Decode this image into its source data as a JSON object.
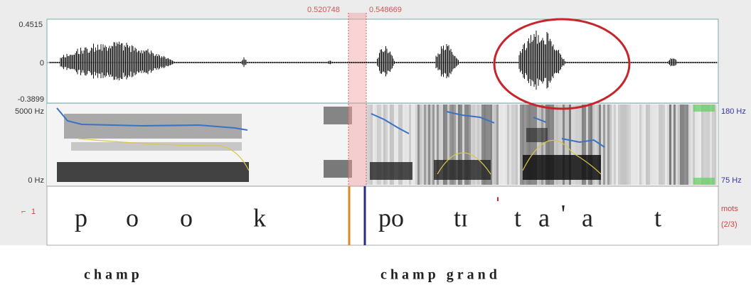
{
  "header": {
    "selection_start": "0.520748",
    "selection_end": "0.548669"
  },
  "waveform": {
    "y_max": "0.4515",
    "y_zero": "0",
    "y_min": "-0.3899"
  },
  "spectrogram": {
    "freq_max": "5000 Hz",
    "freq_min": "0 Hz",
    "pitch_max": "180 Hz",
    "pitch_min": "75 Hz"
  },
  "tier": {
    "number": "1",
    "left_segments": [
      "p",
      "o",
      "o",
      "k"
    ],
    "right_segments": [
      "po",
      "tɪ",
      "ˈ",
      "t",
      "a",
      "'",
      "a",
      "t"
    ],
    "name": "mots",
    "index": "(2/3)"
  },
  "captions": [
    "champ",
    "champ grand"
  ]
}
